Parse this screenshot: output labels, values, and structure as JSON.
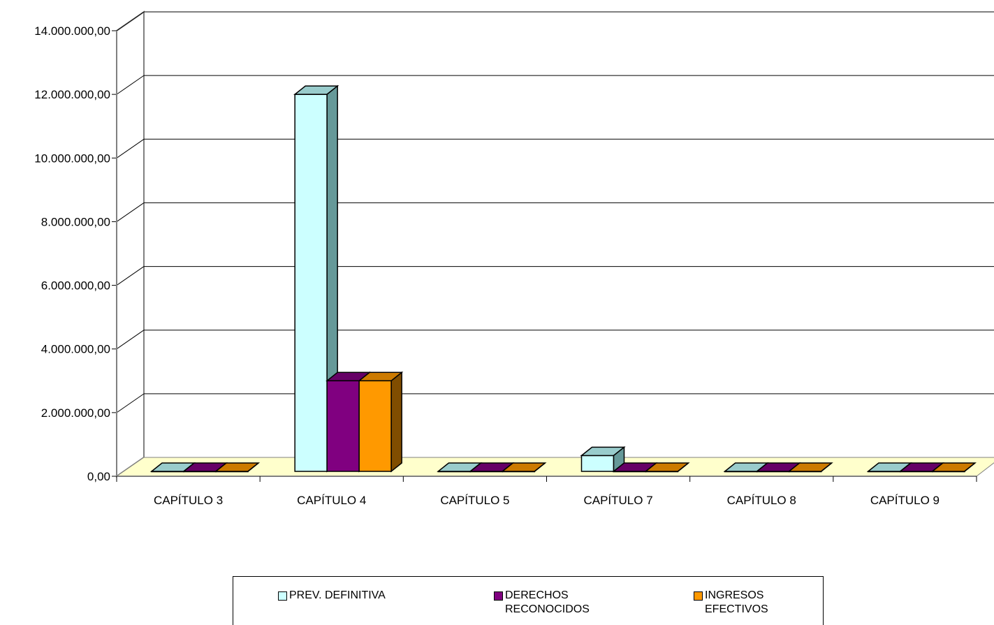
{
  "chart_data": {
    "type": "bar",
    "style": "3d-clustered-column",
    "categories": [
      "CAPÍTULO 3",
      "CAPÍTULO 4",
      "CAPÍTULO 5",
      "CAPÍTULO 7",
      "CAPÍTULO 8",
      "CAPÍTULO 9"
    ],
    "series": [
      {
        "name": "PREV. DEFINITIVA",
        "color": "#CCFFFF",
        "side_color": "#669999",
        "top_color": "#99CCCC",
        "values": [
          0,
          12000000,
          0,
          650000,
          150000,
          0
        ]
      },
      {
        "name": "DERECHOS RECONOCIDOS",
        "color": "#800080",
        "side_color": "#400040",
        "top_color": "#660066",
        "values": [
          0,
          3000000,
          0,
          150000,
          0,
          0
        ]
      },
      {
        "name": "INGRESOS EFECTIVOS",
        "color": "#FF9900",
        "side_color": "#804D00",
        "top_color": "#CC7A00",
        "values": [
          0,
          3000000,
          0,
          150000,
          0,
          0
        ]
      }
    ],
    "ylim": [
      0,
      14000000
    ],
    "yticks": [
      "0,00",
      "2.000.000,00",
      "4.000.000,00",
      "6.000.000,00",
      "8.000.000,00",
      "10.000.000,00",
      "12.000.000,00",
      "14.000.000,00"
    ],
    "ytick_values": [
      0,
      2000000,
      4000000,
      6000000,
      8000000,
      10000000,
      12000000,
      14000000
    ],
    "grid": true,
    "floor_color": "#FFFFCC",
    "legend_position": "bottom"
  }
}
